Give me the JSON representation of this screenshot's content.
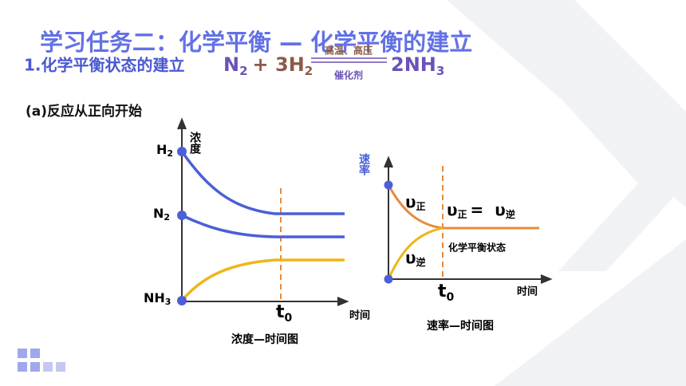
{
  "header": {
    "title": "学习任务二：化学平衡 — 化学平衡的建立",
    "subtitle": "1.化学平衡状态的建立",
    "equation": {
      "parts": [
        "N",
        "2",
        "+ 3H",
        "2",
        "2NH",
        "3"
      ],
      "condition_top": "高温、高压",
      "condition_bottom": "催化剂"
    }
  },
  "section": "(a)反应从正向开始",
  "concentration_graph": {
    "y_label": "浓度",
    "x_label": "时间",
    "t_label": {
      "text": "t",
      "sub": "0"
    },
    "caption": "浓度—时间图",
    "species": [
      {
        "text": "H",
        "sub": "2"
      },
      {
        "text": "N",
        "sub": "2"
      },
      {
        "text": "NH",
        "sub": "3"
      }
    ]
  },
  "rate_graph": {
    "y_label": "速率",
    "x_label": "时间",
    "t_label": {
      "text": "t",
      "sub": "0"
    },
    "caption": "速率—时间图",
    "forward": {
      "text": "υ",
      "sub": "正"
    },
    "backward": {
      "text": "υ",
      "sub": "逆"
    },
    "equality": {
      "left": {
        "text": "υ",
        "sub": "正"
      },
      "sign": "=",
      "right": {
        "text": "υ",
        "sub": "逆"
      }
    },
    "state": "化学平衡状态"
  }
}
